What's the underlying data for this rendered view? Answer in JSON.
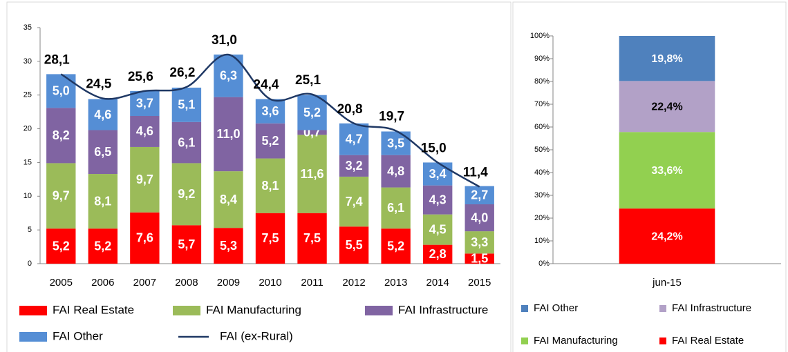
{
  "chart_data": [
    {
      "type": "bar",
      "stacked": true,
      "categories": [
        "2005",
        "2006",
        "2007",
        "2008",
        "2009",
        "2010",
        "2011",
        "2012",
        "2013",
        "2014",
        "2015"
      ],
      "ylim": [
        0,
        35
      ],
      "yticks": [
        0,
        5,
        10,
        15,
        20,
        25,
        30,
        35
      ],
      "series": [
        {
          "name": "FAI Real Estate",
          "color": "#ff0000",
          "values": [
            5.2,
            5.2,
            7.6,
            5.7,
            5.3,
            7.5,
            7.5,
            5.5,
            5.2,
            2.8,
            1.5
          ],
          "value_labels": [
            "5,2",
            "5,2",
            "7,6",
            "5,7",
            "5,3",
            "7,5",
            "7,5",
            "5,5",
            "5,2",
            "2,8",
            "1,5"
          ]
        },
        {
          "name": "FAI Manufacturing",
          "color": "#9bbb59",
          "values": [
            9.7,
            8.1,
            9.7,
            9.2,
            8.4,
            8.1,
            11.6,
            7.4,
            6.1,
            4.5,
            3.3
          ],
          "value_labels": [
            "9,7",
            "8,1",
            "9,7",
            "9,2",
            "8,4",
            "8,1",
            "11,6",
            "7,4",
            "6,1",
            "4,5",
            "3,3"
          ]
        },
        {
          "name": "FAI Infrastructure",
          "color": "#8064a2",
          "values": [
            8.2,
            6.5,
            4.6,
            6.1,
            11.0,
            5.2,
            0.7,
            3.2,
            4.8,
            4.3,
            4.0
          ],
          "value_labels": [
            "8,2",
            "6,5",
            "4,6",
            "6,1",
            "11,0",
            "5,2",
            "0,7",
            "3,2",
            "4,8",
            "4,3",
            "4,0"
          ]
        },
        {
          "name": "FAI Other",
          "color": "#558ed5",
          "values": [
            5.0,
            4.6,
            3.7,
            5.1,
            6.3,
            3.6,
            5.2,
            4.7,
            3.5,
            3.4,
            2.7
          ],
          "value_labels": [
            "5,0",
            "4,6",
            "3,7",
            "5,1",
            "6,3",
            "3,6",
            "5,2",
            "4,7",
            "3,5",
            "3,4",
            "2,7"
          ]
        },
        {
          "name": "FAI (ex-Rural)",
          "type": "line",
          "color": "#1f3864",
          "values": [
            28.1,
            24.5,
            25.6,
            26.2,
            31.0,
            24.4,
            25.1,
            20.8,
            19.7,
            15.0,
            11.4
          ],
          "value_labels": [
            "28,1",
            "24,5",
            "25,6",
            "26,2",
            "31,0",
            "24,4",
            "25,1",
            "20,8",
            "19,7",
            "15,0",
            "11,4"
          ]
        }
      ]
    },
    {
      "type": "bar",
      "stacked": true,
      "categories": [
        "jun-15"
      ],
      "ylim": [
        0,
        100
      ],
      "yticks": [
        {
          "value": 0,
          "label": "0%"
        },
        {
          "value": 10,
          "label": "10%"
        },
        {
          "value": 20,
          "label": "20%"
        },
        {
          "value": 30,
          "label": "30%"
        },
        {
          "value": 40,
          "label": "40%"
        },
        {
          "value": 50,
          "label": "50%"
        },
        {
          "value": 60,
          "label": "60%"
        },
        {
          "value": 70,
          "label": "70%"
        },
        {
          "value": 80,
          "label": "80%"
        },
        {
          "value": 90,
          "label": "90%"
        },
        {
          "value": 100,
          "label": "100%"
        }
      ],
      "series": [
        {
          "name": "FAI Real Estate",
          "color": "#ff0000",
          "values": [
            24.2
          ],
          "value_labels": [
            "24,2%"
          ]
        },
        {
          "name": "FAI Manufacturing",
          "color": "#92d050",
          "values": [
            33.6
          ],
          "value_labels": [
            "33,6%"
          ]
        },
        {
          "name": "FAI Infrastructure",
          "color": "#b2a1c7",
          "values": [
            22.4
          ],
          "value_labels": [
            "22,4%"
          ]
        },
        {
          "name": "FAI Other",
          "color": "#4f81bd",
          "values": [
            19.8
          ],
          "value_labels": [
            "19,8%"
          ]
        }
      ]
    }
  ]
}
